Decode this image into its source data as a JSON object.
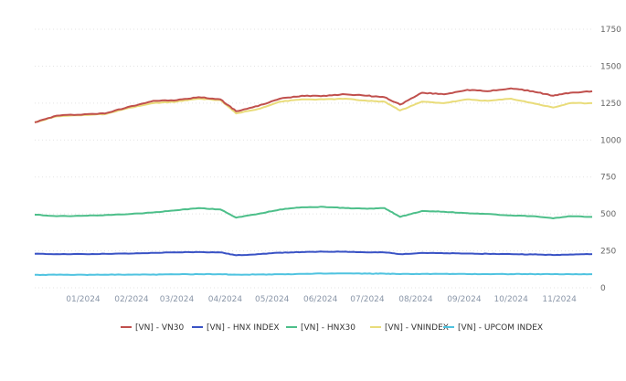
{
  "chart_data": {
    "type": "line",
    "title": "",
    "xlabel": "",
    "ylabel": "",
    "ylim": [
      0,
      1750
    ],
    "yticks": [
      0,
      250,
      500,
      750,
      1000,
      1250,
      1500,
      1750
    ],
    "y_axis_side": "right",
    "grid": "horizontal dotted",
    "legend_position": "bottom",
    "x_range": [
      "2023-12",
      "2024-11-22"
    ],
    "x_tick_labels": [
      "01/2024",
      "02/2024",
      "03/2024",
      "04/2024",
      "05/2024",
      "06/2024",
      "07/2024",
      "08/2024",
      "09/2024",
      "10/2024",
      "11/2024"
    ],
    "x": [
      "2023-12-01",
      "2023-12-15",
      "2024-01-02",
      "2024-01-15",
      "2024-02-01",
      "2024-02-15",
      "2024-03-01",
      "2024-03-15",
      "2024-03-29",
      "2024-04-08",
      "2024-04-22",
      "2024-05-06",
      "2024-05-20",
      "2024-06-03",
      "2024-06-17",
      "2024-07-01",
      "2024-07-12",
      "2024-07-22",
      "2024-08-05",
      "2024-08-19",
      "2024-09-03",
      "2024-09-16",
      "2024-10-01",
      "2024-10-15",
      "2024-10-28",
      "2024-11-08",
      "2024-11-22"
    ],
    "series": [
      {
        "name": "[VN] - VN30",
        "color": "#c0504d",
        "values": [
          1120,
          1165,
          1175,
          1180,
          1230,
          1265,
          1270,
          1290,
          1275,
          1195,
          1230,
          1280,
          1300,
          1300,
          1310,
          1300,
          1290,
          1240,
          1320,
          1310,
          1340,
          1330,
          1350,
          1330,
          1300,
          1320,
          1330
        ]
      },
      {
        "name": "[VN] - HNX INDEX",
        "color": "#3a53c5",
        "values": [
          230,
          228,
          228,
          230,
          232,
          236,
          240,
          242,
          240,
          220,
          228,
          238,
          242,
          244,
          245,
          240,
          240,
          228,
          236,
          234,
          232,
          230,
          228,
          226,
          222,
          226,
          228
        ]
      },
      {
        "name": "[VN] - HNX30",
        "color": "#4dbf8a",
        "values": [
          495,
          485,
          488,
          492,
          500,
          510,
          525,
          540,
          530,
          475,
          500,
          530,
          545,
          548,
          540,
          535,
          540,
          480,
          520,
          515,
          505,
          500,
          490,
          485,
          470,
          485,
          480
        ]
      },
      {
        "name": "[VN] - VNINDEX",
        "color": "#e9dc7a",
        "values": [
          1120,
          1160,
          1170,
          1175,
          1220,
          1250,
          1260,
          1280,
          1270,
          1180,
          1210,
          1260,
          1275,
          1275,
          1280,
          1265,
          1260,
          1200,
          1260,
          1250,
          1275,
          1265,
          1280,
          1250,
          1220,
          1250,
          1250
        ]
      },
      {
        "name": "[VN] - UPCOM INDEX",
        "color": "#4fc3e0",
        "values": [
          88,
          88,
          88,
          89,
          89,
          90,
          91,
          92,
          92,
          89,
          90,
          92,
          94,
          96,
          97,
          96,
          96,
          93,
          94,
          94,
          93,
          93,
          93,
          93,
          92,
          92,
          92
        ]
      }
    ]
  }
}
